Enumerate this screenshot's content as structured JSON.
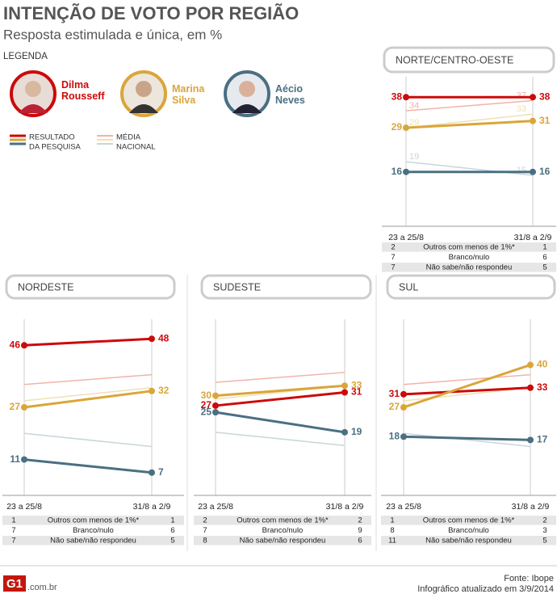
{
  "header": {
    "title": "INTENÇÃO DE VOTO POR REGIÃO",
    "subtitle": "Resposta estimulada e única, em %"
  },
  "legend": {
    "title": "LEGENDA",
    "result_label": [
      "RESULTADO",
      "DA PESQUISA"
    ],
    "national_label": [
      "MÉDIA",
      "NACIONAL"
    ]
  },
  "footer": {
    "logo": "G1",
    "domain": ".com.br",
    "source": "Fonte: Ibope",
    "updated": "Infográfico atualizado em 3/9/2014"
  },
  "chart_data": [
    {
      "type": "line",
      "title": "NORTE/CENTRO-OESTE",
      "x": [
        "23 a 25/8",
        "31/8 a 2/9"
      ],
      "ylim": [
        0,
        44
      ],
      "show_national_labels": true,
      "series": [
        {
          "name": "Dilma Rousseff",
          "color": "#cc0a0a",
          "values": [
            38,
            38
          ],
          "national_color": "#f2b3aa",
          "national_values": [
            34,
            37
          ]
        },
        {
          "name": "Marina Silva",
          "color": "#d9a63a",
          "values": [
            29,
            31
          ],
          "national_color": "#efe1b3",
          "national_values": [
            29,
            33
          ]
        },
        {
          "name": "Aécio Neves",
          "color": "#4b6f82",
          "values": [
            16,
            16
          ],
          "national_color": "#c9d5db",
          "national_values": [
            19,
            15
          ]
        }
      ],
      "table": [
        [
          2,
          "Outros com menos de 1%*",
          1
        ],
        [
          7,
          "Branco/nulo",
          6
        ],
        [
          7,
          "Não sabe/não respondeu",
          5
        ]
      ]
    },
    {
      "type": "line",
      "title": "NORDESTE",
      "x": [
        "23 a 25/8",
        "31/8 a 2/9"
      ],
      "ylim": [
        0,
        54
      ],
      "show_national_labels": false,
      "series": [
        {
          "name": "Dilma Rousseff",
          "color": "#cc0a0a",
          "values": [
            46,
            48
          ],
          "national_color": "#f2b3aa",
          "national_values": [
            34,
            37
          ]
        },
        {
          "name": "Marina Silva",
          "color": "#d9a63a",
          "values": [
            27,
            32
          ],
          "national_color": "#efe1b3",
          "national_values": [
            29,
            33
          ]
        },
        {
          "name": "Aécio Neves",
          "color": "#4b6f82",
          "values": [
            11,
            7
          ],
          "national_color": "#c9d5db",
          "national_values": [
            19,
            15
          ]
        }
      ],
      "table": [
        [
          1,
          "Outros com menos de 1%*",
          1
        ],
        [
          7,
          "Branco/nulo",
          6
        ],
        [
          7,
          "Não sabe/não respondeu",
          5
        ]
      ]
    },
    {
      "type": "line",
      "title": "SUDESTE",
      "x": [
        "23 a 25/8",
        "31/8 a 2/9"
      ],
      "ylim": [
        0,
        53
      ],
      "show_national_labels": false,
      "series": [
        {
          "name": "Dilma Rousseff",
          "color": "#cc0a0a",
          "values": [
            27,
            31
          ],
          "national_color": "#f2b3aa",
          "national_values": [
            34,
            37
          ]
        },
        {
          "name": "Marina Silva",
          "color": "#d9a63a",
          "values": [
            30,
            33
          ],
          "national_color": "#efe1b3",
          "national_values": [
            29,
            33
          ]
        },
        {
          "name": "Aécio Neves",
          "color": "#4b6f82",
          "values": [
            25,
            19
          ],
          "national_color": "#c9d5db",
          "national_values": [
            19,
            15
          ]
        }
      ],
      "table": [
        [
          2,
          "Outros com menos de 1%*",
          2
        ],
        [
          7,
          "Branco/nulo",
          9
        ],
        [
          8,
          "Não sabe/não respondeu",
          6
        ]
      ]
    },
    {
      "type": "line",
      "title": "SUL",
      "x": [
        "23 a 25/8",
        "31/8 a 2/9"
      ],
      "ylim": [
        0,
        54
      ],
      "show_national_labels": false,
      "series": [
        {
          "name": "Dilma Rousseff",
          "color": "#cc0a0a",
          "values": [
            31,
            33
          ],
          "national_color": "#f2b3aa",
          "national_values": [
            34,
            37
          ]
        },
        {
          "name": "Marina Silva",
          "color": "#d9a63a",
          "values": [
            27,
            40
          ],
          "national_color": "#efe1b3",
          "national_values": [
            29,
            33
          ]
        },
        {
          "name": "Aécio Neves",
          "color": "#4b6f82",
          "values": [
            18,
            17
          ],
          "national_color": "#c9d5db",
          "national_values": [
            19,
            15
          ]
        }
      ],
      "table": [
        [
          1,
          "Outros com menos de 1%*",
          2
        ],
        [
          8,
          "Branco/nulo",
          3
        ],
        [
          11,
          "Não sabe/não respondeu",
          5
        ]
      ]
    }
  ]
}
